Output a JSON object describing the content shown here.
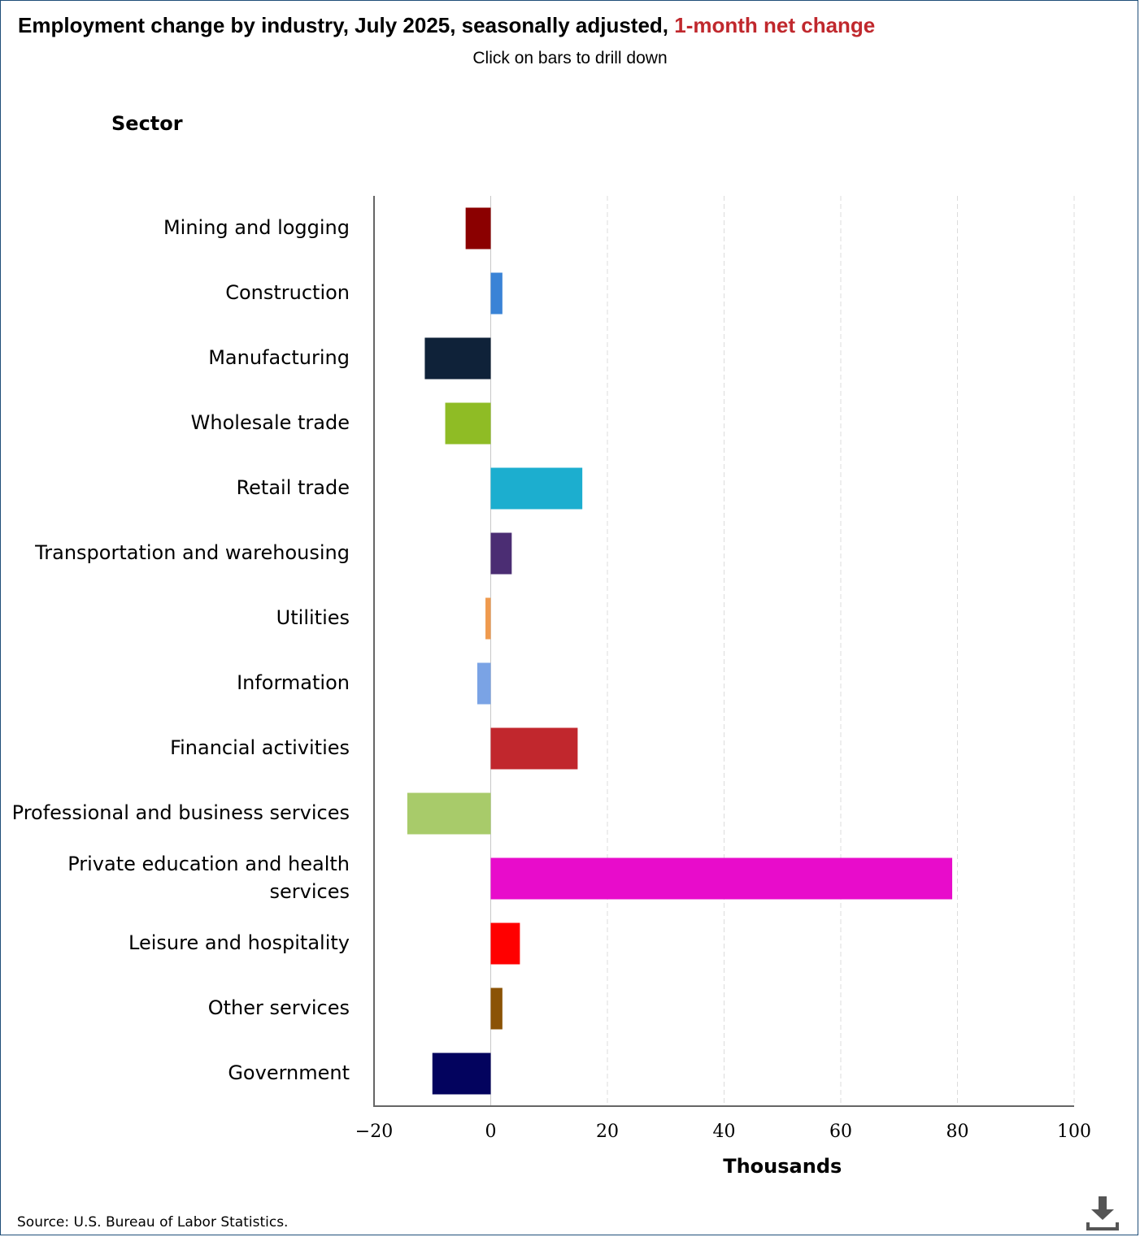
{
  "header": {
    "title_prefix": "Employment change by industry, July 2025, seasonally adjusted,",
    "title_highlight": "1-month net change",
    "subtitle": "Click on bars to drill down"
  },
  "footer": {
    "source": "Source: U.S. Bureau of Labor Statistics."
  },
  "icons": {
    "download": "download-icon"
  },
  "colors": {
    "title_highlight": "#c0282d"
  },
  "chart_data": {
    "type": "bar",
    "orientation": "horizontal",
    "category_axis_title": "Sector",
    "xlabel": "Thousands",
    "xlim": [
      -20,
      100
    ],
    "xticks": [
      -20,
      0,
      20,
      40,
      60,
      80,
      100
    ],
    "xtick_labels": [
      "−20",
      "0",
      "20",
      "40",
      "60",
      "80",
      "100"
    ],
    "grid": "vertical dashed",
    "categories": [
      "Mining and logging",
      "Construction",
      "Manufacturing",
      "Wholesale trade",
      "Retail trade",
      "Transportation and warehousing",
      "Utilities",
      "Information",
      "Financial activities",
      "Professional and business services",
      "Private education and health services",
      "Leisure and hospitality",
      "Other services",
      "Government"
    ],
    "values": [
      -4.3,
      2.0,
      -11.3,
      -7.8,
      15.7,
      3.6,
      -0.9,
      -2.3,
      14.9,
      -14.3,
      79.1,
      5.0,
      2.0,
      -10.0
    ],
    "colors": [
      "#8b0000",
      "#3a83d6",
      "#0f2239",
      "#8fbc25",
      "#1caecf",
      "#4b2d73",
      "#ef9a4e",
      "#7aa3e5",
      "#c1272d",
      "#a8cb6a",
      "#e80ccb",
      "#ff0000",
      "#8b5306",
      "#03035e"
    ]
  }
}
